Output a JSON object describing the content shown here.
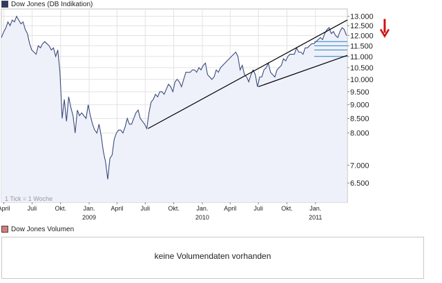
{
  "legend": {
    "price_label": "Dow Jones (DB Indikation)",
    "price_color": "#2b3a67",
    "volume_label": "Dow Jones Volumen",
    "volume_color": "#d97a7a"
  },
  "note": "1 Tick = 1 Woche",
  "volume_panel": {
    "message": "keine Volumendaten vorhanden"
  },
  "chart_data": {
    "type": "area",
    "title": "Dow Jones (DB Indikation)",
    "xlabel": "",
    "ylabel": "",
    "y_scale": "log",
    "ylim": [
      6000,
      13400
    ],
    "xlim": [
      "2008-03-24",
      "2011-04-14"
    ],
    "grid": true,
    "legend_position": "top-left",
    "colors": {
      "line": "#3b4a7a",
      "fill": "#eef1fa",
      "trendline": "#000000",
      "annotation_arrow": "#d01010",
      "horizontal_marks": "#2a7fbf"
    },
    "y_ticks": [
      6500,
      7000,
      8000,
      8500,
      9000,
      9500,
      10000,
      10500,
      11000,
      11500,
      12000,
      12500,
      13000
    ],
    "y_tick_labels": [
      "6.500",
      "7.000",
      "8.000",
      "8.500",
      "9.000",
      "9.500",
      "10.000",
      "10.500",
      "11.000",
      "11.500",
      "12.000",
      "12.500",
      "13.000"
    ],
    "x_ticks": [
      {
        "date": "2008-04-01",
        "label": "April",
        "year": ""
      },
      {
        "date": "2008-07-01",
        "label": "Juli",
        "year": ""
      },
      {
        "date": "2008-10-01",
        "label": "Okt.",
        "year": ""
      },
      {
        "date": "2009-01-01",
        "label": "Jan.",
        "year": "2009"
      },
      {
        "date": "2009-04-01",
        "label": "April",
        "year": ""
      },
      {
        "date": "2009-07-01",
        "label": "Juli",
        "year": ""
      },
      {
        "date": "2009-10-01",
        "label": "Okt.",
        "year": ""
      },
      {
        "date": "2010-01-01",
        "label": "Jan.",
        "year": "2010"
      },
      {
        "date": "2010-04-01",
        "label": "April",
        "year": ""
      },
      {
        "date": "2010-07-01",
        "label": "Juli",
        "year": ""
      },
      {
        "date": "2010-10-01",
        "label": "Okt.",
        "year": ""
      },
      {
        "date": "2011-01-01",
        "label": "Jan.",
        "year": "2011"
      }
    ],
    "series": [
      {
        "values": [
          [
            "2008-03-24",
            11900
          ],
          [
            "2008-04-01",
            12200
          ],
          [
            "2008-04-08",
            12400
          ],
          [
            "2008-04-14",
            12700
          ],
          [
            "2008-04-21",
            12500
          ],
          [
            "2008-04-28",
            12800
          ],
          [
            "2008-05-05",
            12700
          ],
          [
            "2008-05-12",
            13000
          ],
          [
            "2008-05-19",
            12800
          ],
          [
            "2008-05-26",
            12600
          ],
          [
            "2008-06-02",
            12700
          ],
          [
            "2008-06-09",
            12300
          ],
          [
            "2008-06-16",
            12100
          ],
          [
            "2008-06-23",
            11600
          ],
          [
            "2008-06-30",
            11300
          ],
          [
            "2008-07-07",
            11200
          ],
          [
            "2008-07-14",
            11100
          ],
          [
            "2008-07-21",
            11500
          ],
          [
            "2008-07-28",
            11400
          ],
          [
            "2008-08-04",
            11600
          ],
          [
            "2008-08-11",
            11700
          ],
          [
            "2008-08-18",
            11600
          ],
          [
            "2008-08-25",
            11500
          ],
          [
            "2008-09-01",
            11300
          ],
          [
            "2008-09-08",
            11400
          ],
          [
            "2008-09-15",
            11000
          ],
          [
            "2008-09-22",
            11300
          ],
          [
            "2008-09-29",
            10300
          ],
          [
            "2008-10-06",
            8500
          ],
          [
            "2008-10-13",
            9200
          ],
          [
            "2008-10-20",
            8400
          ],
          [
            "2008-10-27",
            9300
          ],
          [
            "2008-11-03",
            8900
          ],
          [
            "2008-11-10",
            8600
          ],
          [
            "2008-11-17",
            8000
          ],
          [
            "2008-11-24",
            8800
          ],
          [
            "2008-12-01",
            8600
          ],
          [
            "2008-12-08",
            8700
          ],
          [
            "2008-12-15",
            8600
          ],
          [
            "2008-12-22",
            8500
          ],
          [
            "2008-12-29",
            9000
          ],
          [
            "2009-01-05",
            8600
          ],
          [
            "2009-01-12",
            8300
          ],
          [
            "2009-01-19",
            8100
          ],
          [
            "2009-01-26",
            8000
          ],
          [
            "2009-02-02",
            8300
          ],
          [
            "2009-02-09",
            7900
          ],
          [
            "2009-02-16",
            7400
          ],
          [
            "2009-02-23",
            7100
          ],
          [
            "2009-03-02",
            6600
          ],
          [
            "2009-03-09",
            7200
          ],
          [
            "2009-03-16",
            7300
          ],
          [
            "2009-03-23",
            7800
          ],
          [
            "2009-03-30",
            8000
          ],
          [
            "2009-04-06",
            8100
          ],
          [
            "2009-04-13",
            8100
          ],
          [
            "2009-04-20",
            8000
          ],
          [
            "2009-04-27",
            8200
          ],
          [
            "2009-05-04",
            8500
          ],
          [
            "2009-05-11",
            8300
          ],
          [
            "2009-05-18",
            8300
          ],
          [
            "2009-05-25",
            8500
          ],
          [
            "2009-06-01",
            8700
          ],
          [
            "2009-06-08",
            8800
          ],
          [
            "2009-06-15",
            8500
          ],
          [
            "2009-06-22",
            8400
          ],
          [
            "2009-06-29",
            8300
          ],
          [
            "2009-07-06",
            8150
          ],
          [
            "2009-07-13",
            8700
          ],
          [
            "2009-07-20",
            9100
          ],
          [
            "2009-07-27",
            9200
          ],
          [
            "2009-08-03",
            9400
          ],
          [
            "2009-08-10",
            9300
          ],
          [
            "2009-08-17",
            9500
          ],
          [
            "2009-08-24",
            9500
          ],
          [
            "2009-08-31",
            9400
          ],
          [
            "2009-09-07",
            9600
          ],
          [
            "2009-09-14",
            9800
          ],
          [
            "2009-09-21",
            9700
          ],
          [
            "2009-09-28",
            9500
          ],
          [
            "2009-10-05",
            9900
          ],
          [
            "2009-10-12",
            10000
          ],
          [
            "2009-10-19",
            9900
          ],
          [
            "2009-10-26",
            9700
          ],
          [
            "2009-11-02",
            10000
          ],
          [
            "2009-11-09",
            10300
          ],
          [
            "2009-11-16",
            10300
          ],
          [
            "2009-11-23",
            10300
          ],
          [
            "2009-11-30",
            10400
          ],
          [
            "2009-12-07",
            10400
          ],
          [
            "2009-12-14",
            10300
          ],
          [
            "2009-12-21",
            10500
          ],
          [
            "2009-12-28",
            10400
          ],
          [
            "2010-01-04",
            10600
          ],
          [
            "2010-01-11",
            10700
          ],
          [
            "2010-01-18",
            10200
          ],
          [
            "2010-01-25",
            10100
          ],
          [
            "2010-02-01",
            10000
          ],
          [
            "2010-02-08",
            10100
          ],
          [
            "2010-02-15",
            10400
          ],
          [
            "2010-02-22",
            10300
          ],
          [
            "2010-03-01",
            10500
          ],
          [
            "2010-03-08",
            10600
          ],
          [
            "2010-03-15",
            10700
          ],
          [
            "2010-03-22",
            10800
          ],
          [
            "2010-03-29",
            10900
          ],
          [
            "2010-04-05",
            11000
          ],
          [
            "2010-04-12",
            11100
          ],
          [
            "2010-04-19",
            11200
          ],
          [
            "2010-04-26",
            11000
          ],
          [
            "2010-05-03",
            10400
          ],
          [
            "2010-05-10",
            10600
          ],
          [
            "2010-05-17",
            10200
          ],
          [
            "2010-05-24",
            10100
          ],
          [
            "2010-05-31",
            9900
          ],
          [
            "2010-06-07",
            10200
          ],
          [
            "2010-06-14",
            10400
          ],
          [
            "2010-06-21",
            10200
          ],
          [
            "2010-06-28",
            9700
          ],
          [
            "2010-07-05",
            10100
          ],
          [
            "2010-07-12",
            10100
          ],
          [
            "2010-07-19",
            10400
          ],
          [
            "2010-07-26",
            10500
          ],
          [
            "2010-08-02",
            10700
          ],
          [
            "2010-08-09",
            10300
          ],
          [
            "2010-08-16",
            10200
          ],
          [
            "2010-08-23",
            10100
          ],
          [
            "2010-08-30",
            10400
          ],
          [
            "2010-09-06",
            10500
          ],
          [
            "2010-09-13",
            10600
          ],
          [
            "2010-09-20",
            10900
          ],
          [
            "2010-09-27",
            10800
          ],
          [
            "2010-10-04",
            11000
          ],
          [
            "2010-10-11",
            11100
          ],
          [
            "2010-10-18",
            11100
          ],
          [
            "2010-10-25",
            11100
          ],
          [
            "2010-11-01",
            11400
          ],
          [
            "2010-11-08",
            11200
          ],
          [
            "2010-11-15",
            11200
          ],
          [
            "2010-11-22",
            11100
          ],
          [
            "2010-11-29",
            11400
          ],
          [
            "2010-12-06",
            11400
          ],
          [
            "2010-12-13",
            11500
          ],
          [
            "2010-12-20",
            11600
          ],
          [
            "2010-12-27",
            11600
          ],
          [
            "2011-01-03",
            11700
          ],
          [
            "2011-01-10",
            11800
          ],
          [
            "2011-01-17",
            11900
          ],
          [
            "2011-01-24",
            11800
          ],
          [
            "2011-01-31",
            12100
          ],
          [
            "2011-02-07",
            12300
          ],
          [
            "2011-02-14",
            12400
          ],
          [
            "2011-02-21",
            12100
          ],
          [
            "2011-02-28",
            12200
          ],
          [
            "2011-03-07",
            12000
          ],
          [
            "2011-03-14",
            11900
          ],
          [
            "2011-03-21",
            12200
          ],
          [
            "2011-03-28",
            12400
          ],
          [
            "2011-04-04",
            12300
          ],
          [
            "2011-04-11",
            12000
          ]
        ]
      }
    ],
    "trendlines": [
      {
        "points": [
          [
            "2009-07-10",
            8150
          ],
          [
            "2011-04-14",
            12800
          ]
        ]
      },
      {
        "points": [
          [
            "2010-07-01",
            9700
          ],
          [
            "2011-04-14",
            11050
          ]
        ]
      }
    ],
    "horizontal_marks": [
      11000,
      11300,
      11500,
      11700
    ],
    "annotation_arrow": {
      "date": "2011-04-14",
      "value": 12000,
      "direction": "down"
    }
  }
}
